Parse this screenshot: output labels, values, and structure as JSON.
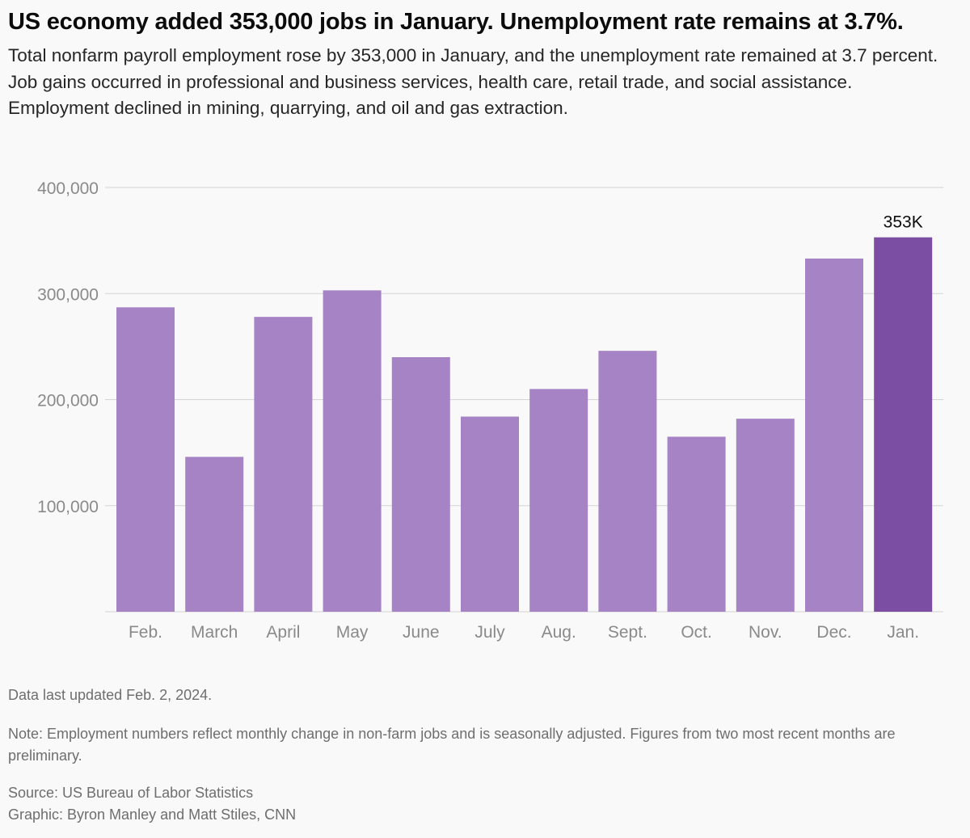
{
  "headline": "US economy added 353,000 jobs in January. Unemployment rate remains at 3.7%.",
  "subhead": "Total nonfarm payroll employment rose by 353,000 in January, and the unemployment rate remained at 3.7 percent. Job gains occurred in professional and business services, health care, retail trade, and social assistance. Employment declined in mining, quarrying, and oil and gas extraction.",
  "colors": {
    "bar": "#a583c5",
    "highlight": "#7b4ea3",
    "grid": "#d4d4d4",
    "axis_text": "#8a8a8a"
  },
  "chart_data": {
    "type": "bar",
    "title": "",
    "xlabel": "",
    "ylabel": "",
    "categories": [
      "Feb.",
      "March",
      "April",
      "May",
      "June",
      "July",
      "Aug.",
      "Sept.",
      "Oct.",
      "Nov.",
      "Dec.",
      "Jan."
    ],
    "values": [
      287000,
      146000,
      278000,
      303000,
      240000,
      184000,
      210000,
      246000,
      165000,
      182000,
      333000,
      353000
    ],
    "ylim": [
      0,
      400000
    ],
    "yticks": [
      100000,
      200000,
      300000,
      400000
    ],
    "ytick_labels": [
      "100,000",
      "200,000",
      "300,000",
      "400,000"
    ],
    "grid": true,
    "highlight_index": 11,
    "annotations": [
      {
        "index": 11,
        "text": "353K"
      }
    ]
  },
  "footer": {
    "updated": "Data last updated Feb. 2, 2024.",
    "note": "Note: Employment numbers reflect monthly change in non-farm jobs and is seasonally adjusted. Figures from two most recent months are preliminary.",
    "source": "Source: US Bureau of Labor Statistics",
    "graphic": "Graphic: Byron Manley and Matt Stiles, CNN"
  }
}
